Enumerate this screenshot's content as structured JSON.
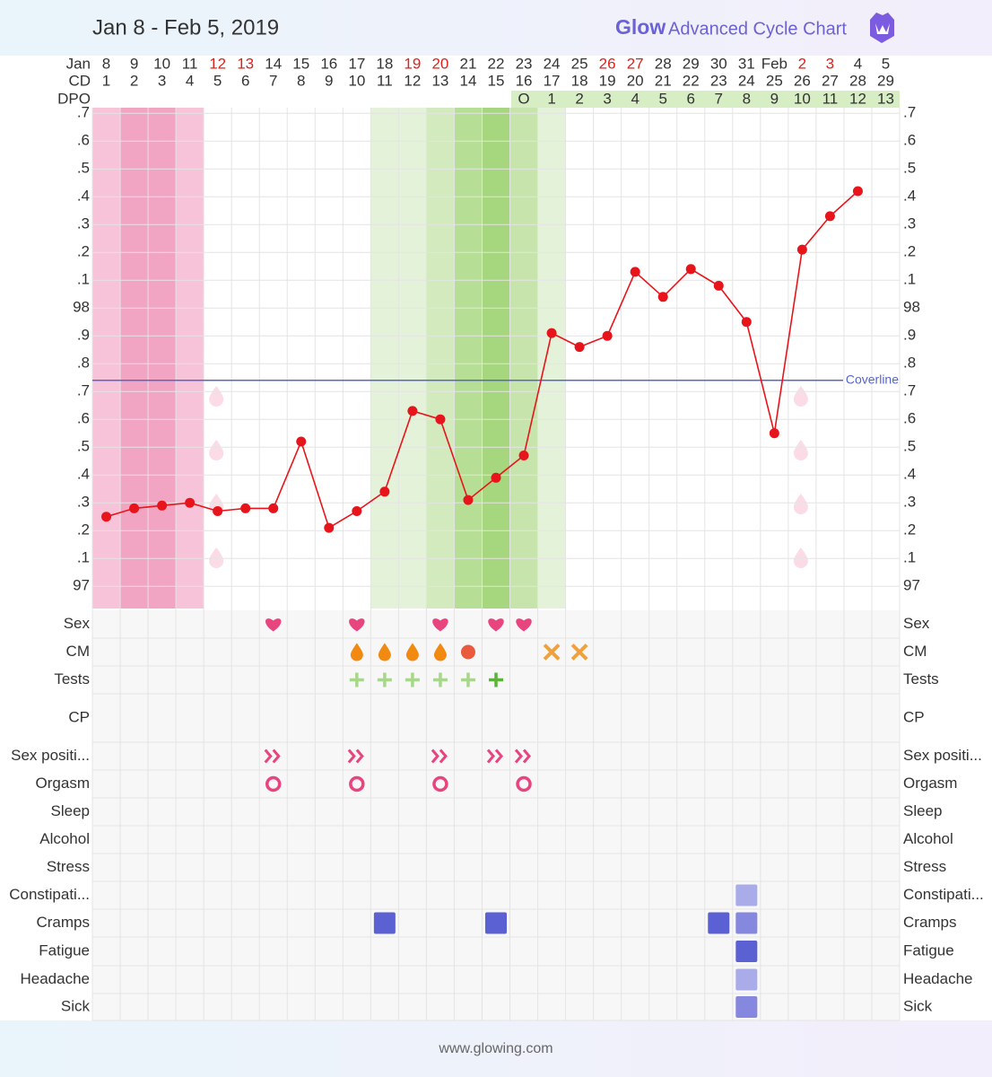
{
  "header": {
    "date_range": "Jan 8 - Feb 5, 2019",
    "brand_name": "Glow",
    "brand_subtitle": "Advanced Cycle Chart"
  },
  "footer": "www.glowing.com",
  "row_labels": [
    "Jan",
    "CD",
    "DPO"
  ],
  "symptom_rows": [
    "Sex",
    "CM",
    "Tests",
    "CP",
    "Sex positi...",
    "Orgasm",
    "Sleep",
    "Alcohol",
    "Stress",
    "Constipati...",
    "Cramps",
    "Fatigue",
    "Headache",
    "Sick"
  ],
  "chart_data": {
    "type": "line",
    "categories": [
      "8",
      "9",
      "10",
      "11",
      "12",
      "13",
      "14",
      "15",
      "16",
      "17",
      "18",
      "19",
      "20",
      "21",
      "22",
      "23",
      "24",
      "25",
      "26",
      "27",
      "28",
      "29",
      "30",
      "31",
      "Feb",
      "2",
      "3",
      "4",
      "5"
    ],
    "weekend": [
      false,
      false,
      false,
      false,
      true,
      true,
      false,
      false,
      false,
      false,
      false,
      true,
      true,
      false,
      false,
      false,
      false,
      false,
      true,
      true,
      false,
      false,
      false,
      false,
      false,
      true,
      true,
      false,
      false
    ],
    "weekend_color": "#e0201b",
    "cycle_days": [
      1,
      2,
      3,
      4,
      5,
      6,
      7,
      8,
      9,
      10,
      11,
      12,
      13,
      14,
      15,
      16,
      17,
      18,
      19,
      20,
      21,
      22,
      23,
      24,
      25,
      26,
      27,
      28,
      29
    ],
    "dpo": [
      null,
      null,
      null,
      null,
      null,
      null,
      null,
      null,
      null,
      null,
      null,
      null,
      null,
      null,
      null,
      "O",
      1,
      2,
      3,
      4,
      5,
      6,
      7,
      8,
      9,
      10,
      11,
      12,
      13
    ],
    "values": [
      97.25,
      97.28,
      97.29,
      97.3,
      97.27,
      97.28,
      97.28,
      97.52,
      97.21,
      97.27,
      97.34,
      97.63,
      97.6,
      97.31,
      97.39,
      97.47,
      97.91,
      97.86,
      97.9,
      98.13,
      98.04,
      98.14,
      98.08,
      97.95,
      97.55,
      98.21,
      98.33,
      98.42,
      null
    ],
    "color": "#e8141b",
    "coverline": 97.74,
    "coverline_label": "Coverline",
    "coverline_color": "#5566cc",
    "ylim": [
      96.92,
      98.72
    ],
    "yticks": [
      97,
      {
        "value": 97.1,
        "label": ".1"
      },
      {
        "value": 97.2,
        "label": ".2"
      },
      {
        "value": 97.3,
        "label": ".3"
      },
      {
        "value": 97.4,
        "label": ".4"
      },
      {
        "value": 97.5,
        "label": ".5"
      },
      {
        "value": 97.6,
        "label": ".6"
      },
      {
        "value": 97.7,
        "label": ".7"
      },
      {
        "value": 97.8,
        "label": ".8"
      },
      {
        "value": 97.9,
        "label": ".9"
      },
      98,
      {
        "value": 98.1,
        "label": ".1"
      },
      {
        "value": 98.2,
        "label": ".2"
      },
      {
        "value": 98.3,
        "label": ".3"
      },
      {
        "value": 98.4,
        "label": ".4"
      },
      {
        "value": 98.5,
        "label": ".5"
      },
      {
        "value": 98.6,
        "label": ".6"
      },
      {
        "value": 98.7,
        "label": ".7"
      }
    ],
    "grid": true
  }
}
